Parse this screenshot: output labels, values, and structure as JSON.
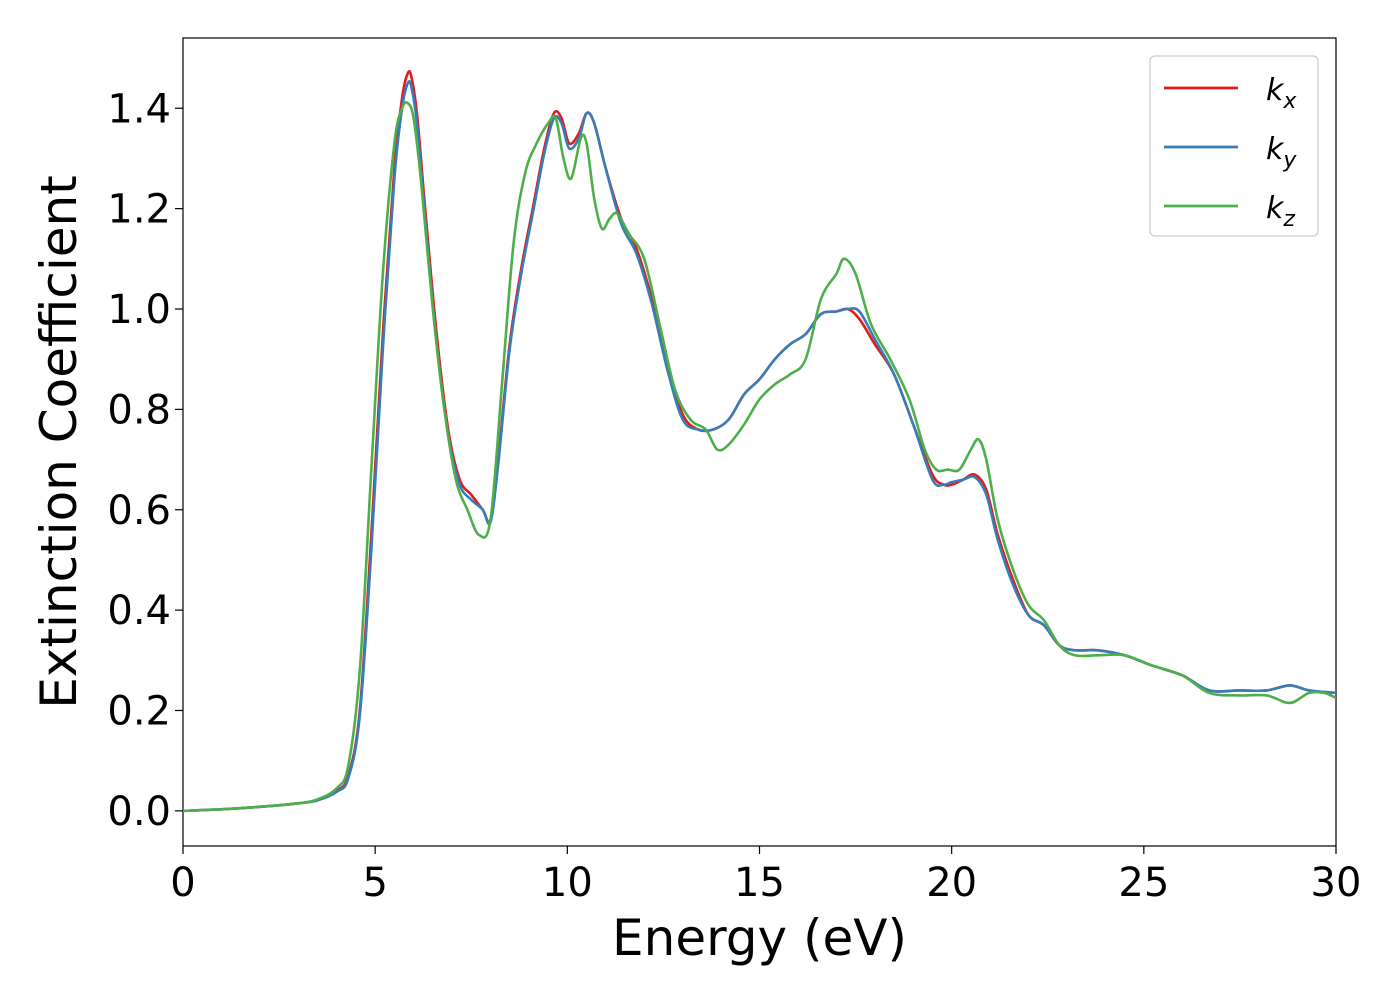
{
  "chart_data": {
    "type": "line",
    "title": "",
    "xlabel": "Energy (eV)",
    "ylabel": "Extinction Coefficient",
    "xlim": [
      0,
      30
    ],
    "ylim": [
      -0.07,
      1.54
    ],
    "xticks": [
      0,
      5,
      10,
      15,
      20,
      25,
      30
    ],
    "yticks": [
      0.0,
      0.2,
      0.4,
      0.6,
      0.8,
      1.0,
      1.2,
      1.4
    ],
    "ytick_labels": [
      "0.0",
      "0.2",
      "0.4",
      "0.6",
      "0.8",
      "1.0",
      "1.2",
      "1.4"
    ],
    "grid": false,
    "legend": "top-right",
    "series": [
      {
        "name": "k_x",
        "label_main": "k",
        "label_sub": "x",
        "color": "#e41a1c",
        "x": [
          0,
          1,
          2,
          3,
          3.5,
          4,
          4.3,
          4.6,
          4.9,
          5.2,
          5.5,
          5.7,
          5.85,
          5.95,
          6.1,
          6.3,
          6.6,
          6.9,
          7.2,
          7.5,
          7.8,
          8.0,
          8.2,
          8.5,
          8.8,
          9.1,
          9.4,
          9.65,
          9.85,
          10.05,
          10.3,
          10.5,
          10.7,
          11.0,
          11.4,
          11.8,
          12.2,
          12.6,
          13.0,
          13.4,
          13.8,
          14.2,
          14.6,
          15.0,
          15.4,
          15.8,
          16.2,
          16.6,
          17.0,
          17.3,
          17.6,
          18.0,
          18.5,
          19.0,
          19.5,
          19.8,
          20.0,
          20.3,
          20.6,
          20.9,
          21.2,
          21.6,
          22.0,
          22.4,
          22.8,
          23.2,
          23.8,
          24.5,
          25.2,
          26.0,
          26.7,
          27.5,
          28.2,
          28.8,
          29.3,
          30.0
        ],
        "values": [
          0.0,
          0.003,
          0.008,
          0.015,
          0.022,
          0.04,
          0.07,
          0.2,
          0.55,
          0.95,
          1.28,
          1.42,
          1.47,
          1.46,
          1.38,
          1.2,
          0.95,
          0.76,
          0.66,
          0.63,
          0.6,
          0.58,
          0.7,
          0.93,
          1.08,
          1.2,
          1.32,
          1.39,
          1.38,
          1.33,
          1.35,
          1.39,
          1.37,
          1.28,
          1.18,
          1.12,
          1.02,
          0.89,
          0.79,
          0.76,
          0.76,
          0.78,
          0.83,
          0.86,
          0.9,
          0.93,
          0.95,
          0.99,
          0.995,
          1.0,
          0.98,
          0.93,
          0.87,
          0.77,
          0.67,
          0.65,
          0.65,
          0.66,
          0.67,
          0.64,
          0.55,
          0.46,
          0.39,
          0.37,
          0.33,
          0.32,
          0.32,
          0.31,
          0.29,
          0.27,
          0.24,
          0.24,
          0.24,
          0.25,
          0.24,
          0.235
        ]
      },
      {
        "name": "k_y",
        "label_main": "k",
        "label_sub": "y",
        "color": "#377eb8",
        "x": [
          0,
          1,
          2,
          3,
          3.5,
          4,
          4.3,
          4.6,
          4.9,
          5.2,
          5.5,
          5.7,
          5.85,
          5.95,
          6.1,
          6.3,
          6.6,
          6.9,
          7.2,
          7.5,
          7.8,
          8.0,
          8.2,
          8.5,
          8.8,
          9.1,
          9.4,
          9.65,
          9.85,
          10.05,
          10.3,
          10.5,
          10.7,
          11.0,
          11.4,
          11.8,
          12.2,
          12.6,
          13.0,
          13.4,
          13.8,
          14.2,
          14.6,
          15.0,
          15.4,
          15.8,
          16.2,
          16.6,
          17.0,
          17.3,
          17.6,
          18.0,
          18.5,
          19.0,
          19.5,
          19.8,
          20.0,
          20.3,
          20.6,
          20.9,
          21.2,
          21.6,
          22.0,
          22.4,
          22.8,
          23.2,
          23.8,
          24.5,
          25.2,
          26.0,
          26.7,
          27.5,
          28.2,
          28.8,
          29.3,
          30.0
        ],
        "values": [
          0.0,
          0.003,
          0.008,
          0.015,
          0.021,
          0.038,
          0.065,
          0.19,
          0.52,
          0.92,
          1.26,
          1.4,
          1.45,
          1.44,
          1.36,
          1.18,
          0.93,
          0.75,
          0.65,
          0.62,
          0.6,
          0.575,
          0.69,
          0.92,
          1.07,
          1.19,
          1.31,
          1.38,
          1.37,
          1.32,
          1.34,
          1.39,
          1.37,
          1.28,
          1.17,
          1.11,
          1.01,
          0.88,
          0.78,
          0.76,
          0.76,
          0.78,
          0.83,
          0.86,
          0.9,
          0.93,
          0.95,
          0.99,
          0.995,
          1.0,
          0.995,
          0.94,
          0.87,
          0.77,
          0.66,
          0.65,
          0.655,
          0.66,
          0.665,
          0.63,
          0.54,
          0.45,
          0.39,
          0.37,
          0.33,
          0.32,
          0.32,
          0.31,
          0.29,
          0.27,
          0.24,
          0.24,
          0.24,
          0.25,
          0.24,
          0.235
        ]
      },
      {
        "name": "k_z",
        "label_main": "k",
        "label_sub": "z",
        "color": "#4daf4a",
        "x": [
          0,
          1,
          2,
          3,
          3.5,
          4,
          4.3,
          4.6,
          4.9,
          5.2,
          5.5,
          5.7,
          5.85,
          6.0,
          6.2,
          6.5,
          6.8,
          7.1,
          7.4,
          7.7,
          8.0,
          8.3,
          8.6,
          8.9,
          9.2,
          9.5,
          9.7,
          9.9,
          10.1,
          10.35,
          10.5,
          10.7,
          10.9,
          11.1,
          11.3,
          11.6,
          12.0,
          12.4,
          12.8,
          13.2,
          13.6,
          13.9,
          14.2,
          14.6,
          15.0,
          15.4,
          15.8,
          16.2,
          16.6,
          17.0,
          17.2,
          17.5,
          17.9,
          18.4,
          18.9,
          19.3,
          19.6,
          19.9,
          20.2,
          20.5,
          20.7,
          20.9,
          21.2,
          21.6,
          22.0,
          22.4,
          22.8,
          23.2,
          23.8,
          24.5,
          25.2,
          26.0,
          26.7,
          27.5,
          28.2,
          28.8,
          29.3,
          29.7,
          30.0
        ],
        "values": [
          0.0,
          0.003,
          0.008,
          0.015,
          0.023,
          0.045,
          0.09,
          0.28,
          0.68,
          1.07,
          1.33,
          1.4,
          1.41,
          1.38,
          1.25,
          1.0,
          0.8,
          0.66,
          0.6,
          0.55,
          0.58,
          0.85,
          1.13,
          1.27,
          1.33,
          1.37,
          1.38,
          1.3,
          1.26,
          1.34,
          1.33,
          1.22,
          1.16,
          1.18,
          1.19,
          1.15,
          1.1,
          0.97,
          0.84,
          0.78,
          0.76,
          0.72,
          0.73,
          0.77,
          0.82,
          0.85,
          0.87,
          0.9,
          1.02,
          1.07,
          1.1,
          1.07,
          0.97,
          0.9,
          0.82,
          0.72,
          0.68,
          0.68,
          0.68,
          0.72,
          0.74,
          0.7,
          0.58,
          0.48,
          0.41,
          0.38,
          0.33,
          0.31,
          0.31,
          0.31,
          0.29,
          0.27,
          0.235,
          0.23,
          0.23,
          0.215,
          0.235,
          0.235,
          0.225
        ]
      }
    ]
  }
}
